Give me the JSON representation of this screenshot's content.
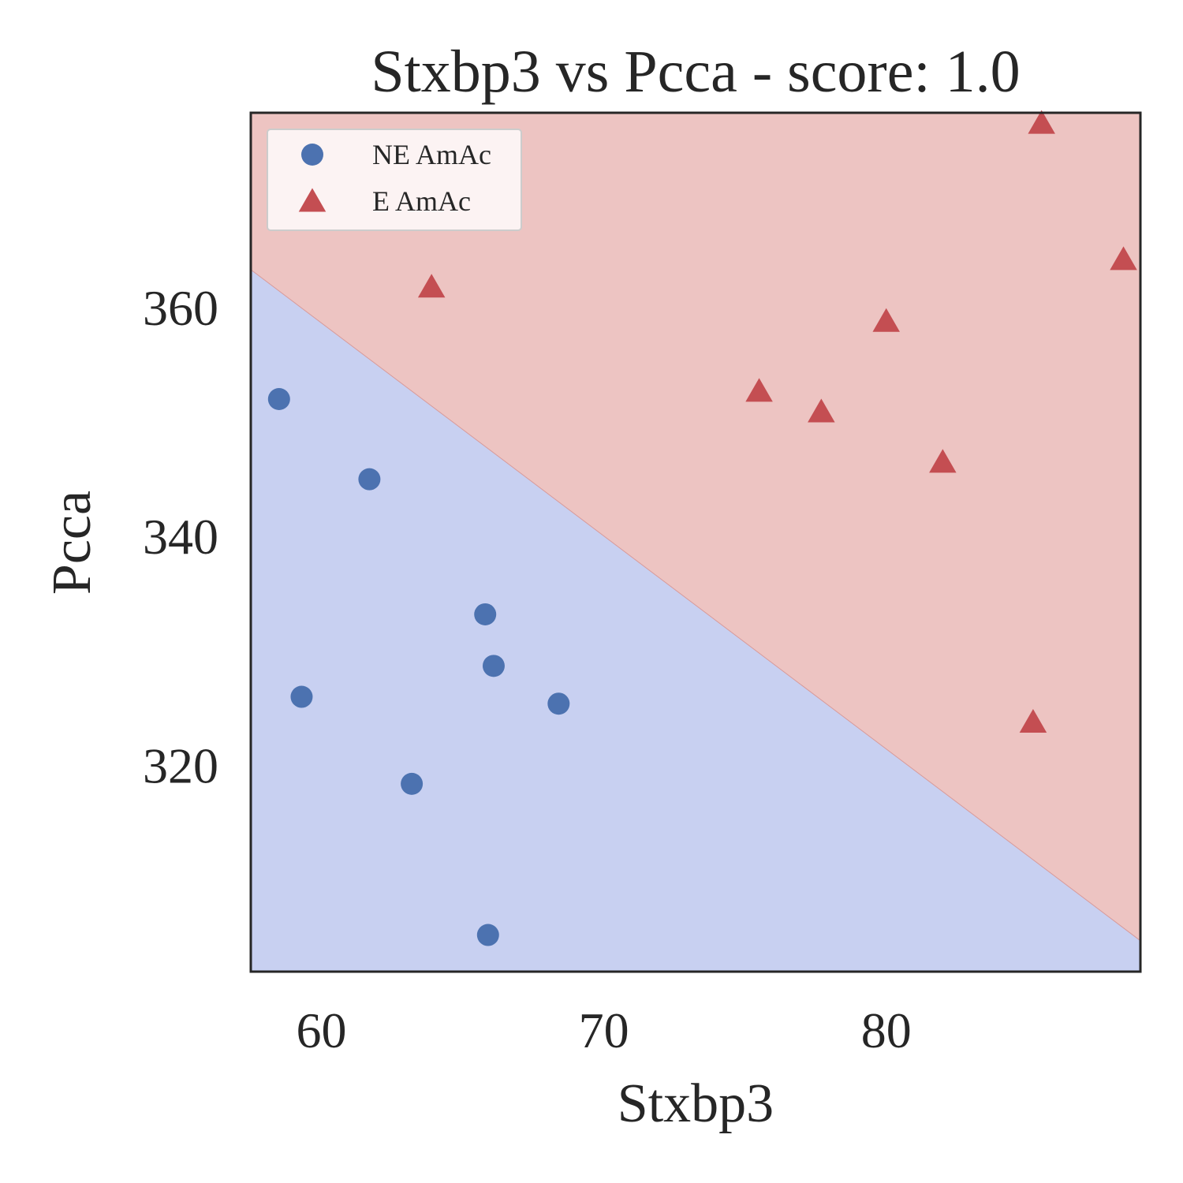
{
  "chart_data": {
    "type": "scatter",
    "title": "Stxbp3 vs Pcca - score: 1.0",
    "xlabel": "Stxbp3",
    "ylabel": "Pcca",
    "xlim": [
      57.5,
      89.0
    ],
    "ylim": [
      302.0,
      377.0
    ],
    "xticks": [
      60,
      70,
      80
    ],
    "yticks": [
      320,
      340,
      360
    ],
    "grid": false,
    "legend_position": "top-left",
    "regions": {
      "boundary": [
        [
          57.5,
          363.3
        ],
        [
          89.0,
          304.7
        ]
      ],
      "colors": {
        "NE AmAc": "#c8d0f1",
        "E AmAc": "#edc4c2"
      }
    },
    "series": [
      {
        "name": "NE AmAc",
        "marker": "circle",
        "color": "#4c72b0",
        "points": [
          [
            58.5,
            352.0
          ],
          [
            61.7,
            345.0
          ],
          [
            59.3,
            326.0
          ],
          [
            63.2,
            318.4
          ],
          [
            65.8,
            333.2
          ],
          [
            66.1,
            328.7
          ],
          [
            68.4,
            325.4
          ],
          [
            65.9,
            305.2
          ]
        ]
      },
      {
        "name": "E AmAc",
        "marker": "triangle",
        "color": "#c44e52",
        "points": [
          [
            63.9,
            361.8
          ],
          [
            75.5,
            352.7
          ],
          [
            77.7,
            350.9
          ],
          [
            80.0,
            358.8
          ],
          [
            82.0,
            346.5
          ],
          [
            85.2,
            323.8
          ],
          [
            85.5,
            376.1
          ],
          [
            88.4,
            364.2
          ]
        ]
      }
    ]
  }
}
